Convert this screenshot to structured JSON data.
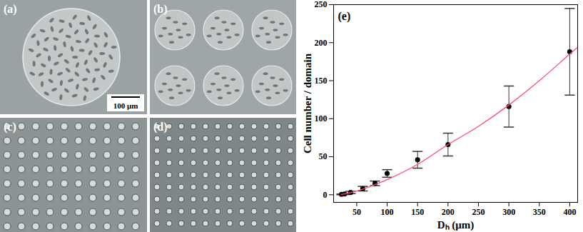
{
  "panels": {
    "labels": [
      "(a)",
      "(b)",
      "(c)",
      "(d)"
    ],
    "scale_bar": "100 μm"
  },
  "chart_data": {
    "type": "scatter",
    "annotations": [
      "(e)"
    ],
    "x_label": "Dₕ (μm)",
    "y_label": "Cell number / domain",
    "xlim": [
      12,
      413
    ],
    "ylim": [
      -10,
      250
    ],
    "xticks": [
      50,
      100,
      150,
      200,
      250,
      300,
      350,
      400
    ],
    "yticks": [
      0,
      50,
      100,
      150,
      200,
      250
    ],
    "grid": false,
    "series": [
      {
        "type": "scatter",
        "color": "#000000",
        "marker": "circle",
        "x": [
          25,
          30,
          40,
          60,
          80,
          100,
          150,
          200,
          300,
          400
        ],
        "values": [
          0.5,
          1,
          3,
          8,
          15,
          28,
          46,
          66,
          116,
          188
        ],
        "error": [
          0.5,
          0.8,
          1.5,
          3,
          3,
          5,
          11,
          15,
          27,
          57
        ]
      },
      {
        "type": "line",
        "color": "#ff4d6d",
        "x": [
          25,
          50,
          100,
          150,
          200,
          250,
          300,
          350,
          400,
          413
        ],
        "values": [
          0.5,
          5,
          20,
          40,
          66,
          90,
          118,
          150,
          185,
          194
        ]
      }
    ]
  }
}
